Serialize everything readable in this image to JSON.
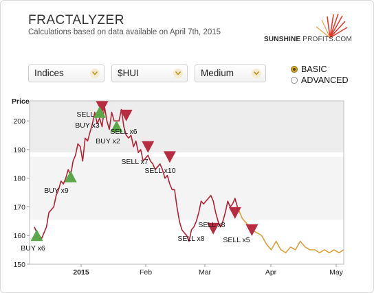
{
  "header": {
    "title": "FRACTALYZER",
    "subtitle": "Calculations based on data available on April 7th, 2015",
    "logo_bold": "SUNSHINE",
    "logo_light": " PROFITS.COM"
  },
  "controls": {
    "market": "Indices",
    "ticker": "$HUI",
    "horizon": "Medium",
    "mode_basic": "BASIC",
    "mode_advanced": "ADVANCED",
    "selected_mode": "BASIC"
  },
  "colors": {
    "history_line": "#b22234",
    "forecast_line": "#d9a03a",
    "buy": "#5aa84a",
    "sell": "#b82c41"
  },
  "chart_data": {
    "type": "line",
    "ylabel": "Price",
    "ylim": [
      150,
      207
    ],
    "yticks": [
      150,
      160,
      170,
      180,
      190,
      200
    ],
    "x_labels": [
      "2015",
      "Feb",
      "Mar",
      "Apr",
      "May"
    ],
    "history_series": [
      [
        -10,
        163
      ],
      [
        -9,
        161
      ],
      [
        -8,
        160
      ],
      [
        -7,
        159
      ],
      [
        -6,
        161
      ],
      [
        -5,
        163
      ],
      [
        -4,
        168
      ],
      [
        -3,
        169
      ],
      [
        -2,
        170
      ],
      [
        -1,
        174
      ],
      [
        0,
        176
      ],
      [
        1,
        179
      ],
      [
        2,
        178
      ],
      [
        3,
        180
      ],
      [
        4,
        183
      ],
      [
        5,
        181
      ],
      [
        6,
        186
      ],
      [
        7,
        188
      ],
      [
        8,
        192
      ],
      [
        9,
        191
      ],
      [
        10,
        186
      ],
      [
        11,
        194
      ],
      [
        12,
        193
      ],
      [
        13,
        196
      ],
      [
        14,
        199
      ],
      [
        15,
        203
      ],
      [
        16,
        199
      ],
      [
        17,
        201
      ],
      [
        18,
        198
      ],
      [
        19,
        205
      ],
      [
        20,
        200
      ],
      [
        21,
        197
      ],
      [
        22,
        203
      ],
      [
        23,
        200
      ],
      [
        24,
        200
      ],
      [
        25,
        200
      ],
      [
        26,
        204
      ],
      [
        27,
        198
      ],
      [
        28,
        195
      ],
      [
        29,
        194
      ],
      [
        30,
        195
      ],
      [
        31,
        191
      ],
      [
        32,
        193
      ],
      [
        33,
        189
      ],
      [
        34,
        190
      ],
      [
        35,
        186
      ],
      [
        36,
        187
      ],
      [
        37,
        188
      ],
      [
        38,
        186
      ],
      [
        39,
        185
      ],
      [
        40,
        183
      ],
      [
        41,
        184
      ],
      [
        42,
        185
      ],
      [
        43,
        183
      ],
      [
        44,
        180
      ],
      [
        45,
        181
      ],
      [
        46,
        178
      ],
      [
        47,
        176
      ],
      [
        48,
        176
      ],
      [
        49,
        170
      ],
      [
        50,
        165
      ],
      [
        51,
        162
      ],
      [
        52,
        161
      ],
      [
        53,
        160
      ],
      [
        54,
        158
      ],
      [
        55,
        162
      ],
      [
        56,
        163
      ],
      [
        57,
        165
      ],
      [
        58,
        168
      ],
      [
        59,
        172
      ],
      [
        60,
        171
      ],
      [
        61,
        172
      ],
      [
        62,
        173
      ],
      [
        63,
        174
      ],
      [
        64,
        172
      ],
      [
        65,
        168
      ],
      [
        66,
        165
      ],
      [
        67,
        163
      ],
      [
        68,
        165
      ],
      [
        69,
        168
      ],
      [
        70,
        172
      ],
      [
        71,
        170
      ],
      [
        72,
        171
      ],
      [
        73,
        173
      ],
      [
        74,
        170
      ]
    ],
    "forecast_series": [
      [
        74,
        170
      ],
      [
        76,
        166
      ],
      [
        78,
        164
      ],
      [
        80,
        162
      ],
      [
        82,
        161
      ],
      [
        84,
        160
      ],
      [
        86,
        157
      ],
      [
        88,
        155
      ],
      [
        90,
        158
      ],
      [
        92,
        155
      ],
      [
        94,
        154
      ],
      [
        96,
        156
      ],
      [
        98,
        155
      ],
      [
        100,
        158
      ],
      [
        102,
        156
      ],
      [
        104,
        155
      ],
      [
        106,
        155
      ],
      [
        108,
        154
      ],
      [
        110,
        155
      ],
      [
        112,
        154
      ],
      [
        114,
        155
      ],
      [
        116,
        154
      ],
      [
        118,
        155
      ]
    ],
    "zones": [
      {
        "from": 189,
        "to": 207,
        "shade": "#ededed"
      },
      {
        "from": 165.5,
        "to": 187.5,
        "shade": "#f4f4f4"
      }
    ],
    "signals": [
      {
        "kind": "buy",
        "x": -9,
        "y": 160,
        "label": "BUY x6"
      },
      {
        "kind": "buy",
        "x": 5,
        "y": 180.5,
        "label": "BUY x9"
      },
      {
        "kind": "sell",
        "x": 18,
        "y": 205,
        "label": "SELL x5"
      },
      {
        "kind": "buy",
        "x": 17,
        "y": 203,
        "label": "BUY x3"
      },
      {
        "kind": "buy",
        "x": 24,
        "y": 198,
        "label": "BUY x2"
      },
      {
        "kind": "sell",
        "x": 28,
        "y": 202,
        "label": "SELL x6"
      },
      {
        "kind": "sell",
        "x": 37,
        "y": 191,
        "label": "SELL x7"
      },
      {
        "kind": "sell",
        "x": 46,
        "y": 187.5,
        "label": "SELL x10"
      },
      {
        "kind": "sell",
        "x": 64,
        "y": 162.5,
        "label": "SELL x8"
      },
      {
        "kind": "sell",
        "x": 73,
        "y": 168,
        "label": "SELL x8"
      },
      {
        "kind": "sell",
        "x": 80,
        "y": 162,
        "label": "SELL x5"
      }
    ]
  }
}
